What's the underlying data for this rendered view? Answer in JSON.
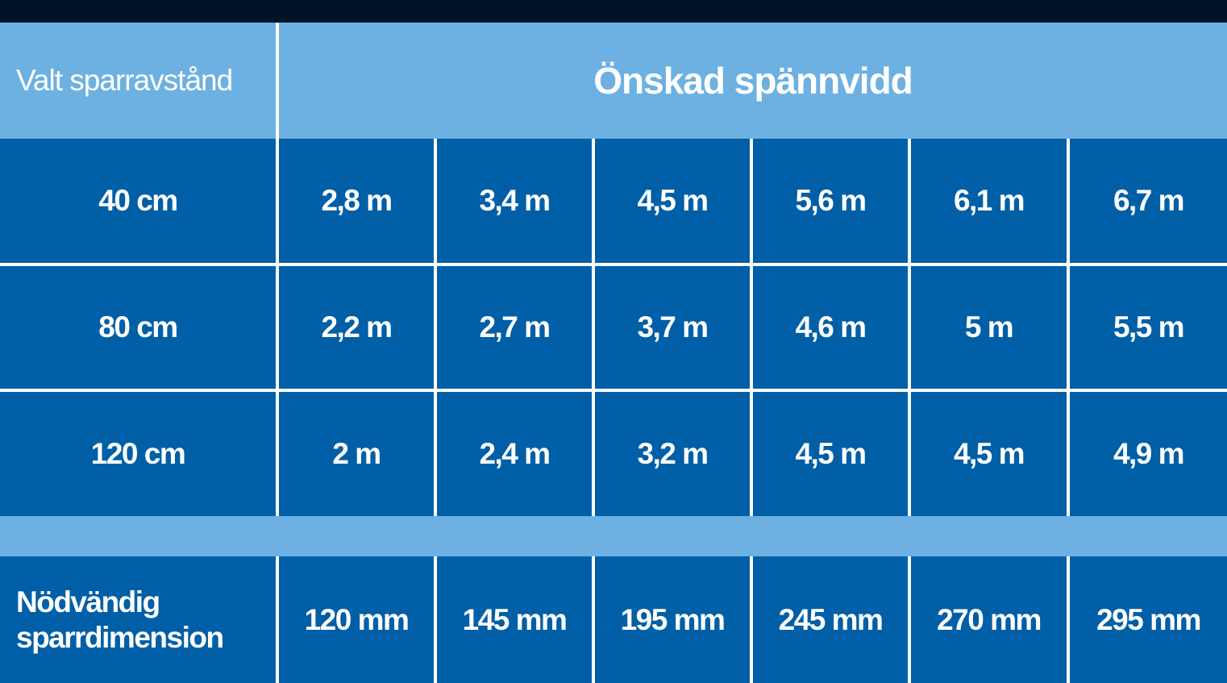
{
  "header": {
    "row_label": "Valt sparravstånd",
    "column_group": "Önskad spännvidd"
  },
  "rows": [
    {
      "label": "40 cm",
      "values": [
        "2,8 m",
        "3,4 m",
        "4,5 m",
        "5,6 m",
        "6,1 m",
        "6,7 m"
      ]
    },
    {
      "label": "80 cm",
      "values": [
        "2,2 m",
        "2,7 m",
        "3,7 m",
        "4,6 m",
        "5 m",
        "5,5 m"
      ]
    },
    {
      "label": "120 cm",
      "values": [
        "2 m",
        "2,4 m",
        "3,2 m",
        "4,5 m",
        "4,5 m",
        "4,9 m"
      ]
    }
  ],
  "footer": {
    "label": "Nödvändig sparrdimension",
    "values": [
      "120 mm",
      "145 mm",
      "195 mm",
      "245 mm",
      "270 mm",
      "295 mm"
    ]
  }
}
